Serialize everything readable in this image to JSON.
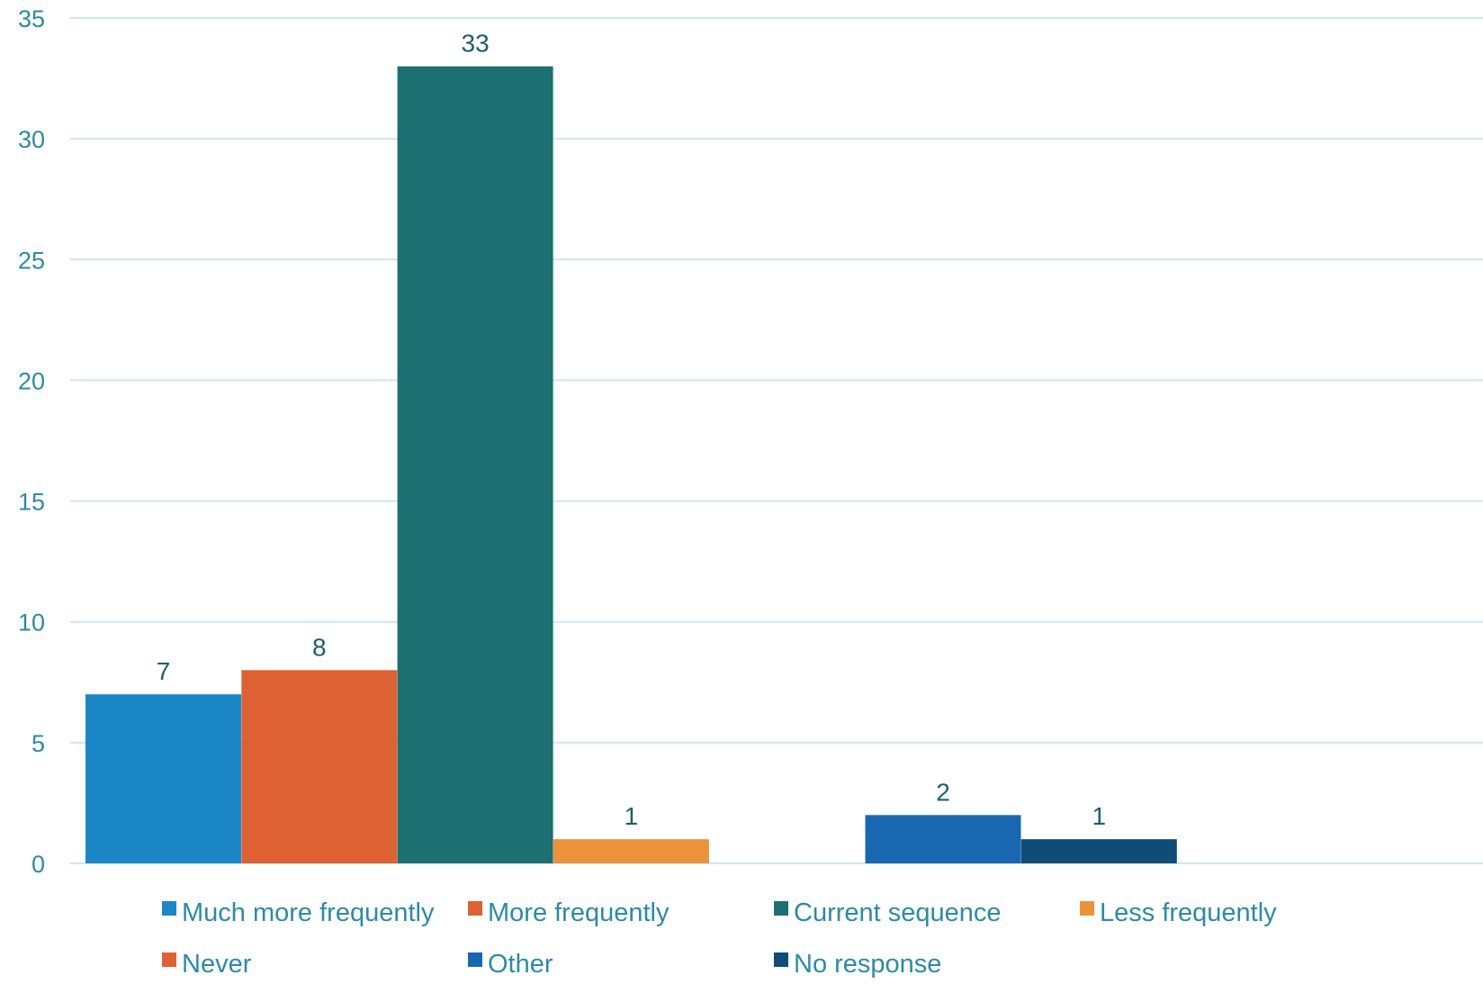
{
  "chart_data": {
    "type": "bar",
    "title": "",
    "xlabel": "",
    "ylabel": "",
    "ylim": [
      0,
      35
    ],
    "yticks": [
      0,
      5,
      10,
      15,
      20,
      25,
      30,
      35
    ],
    "grid": true,
    "legend_position": "bottom",
    "series": [
      {
        "name": "Much more frequently",
        "value": 7,
        "color": "#1b87c7"
      },
      {
        "name": "More frequently",
        "value": 8,
        "color": "#dd6133"
      },
      {
        "name": "Current sequence",
        "value": 33,
        "color": "#1d7072"
      },
      {
        "name": "Less frequently",
        "value": 1,
        "color": "#eb923b"
      },
      {
        "name": "Never",
        "value": 0,
        "color": "#dd6133"
      },
      {
        "name": "Other",
        "value": 2,
        "color": "#1967b1"
      },
      {
        "name": "No response",
        "value": 1,
        "color": "#0f4c76"
      }
    ]
  },
  "colors": {
    "axis_text": "#2d8aa6",
    "data_label": "#1e5d6e",
    "gridline": "#cde8ee"
  }
}
